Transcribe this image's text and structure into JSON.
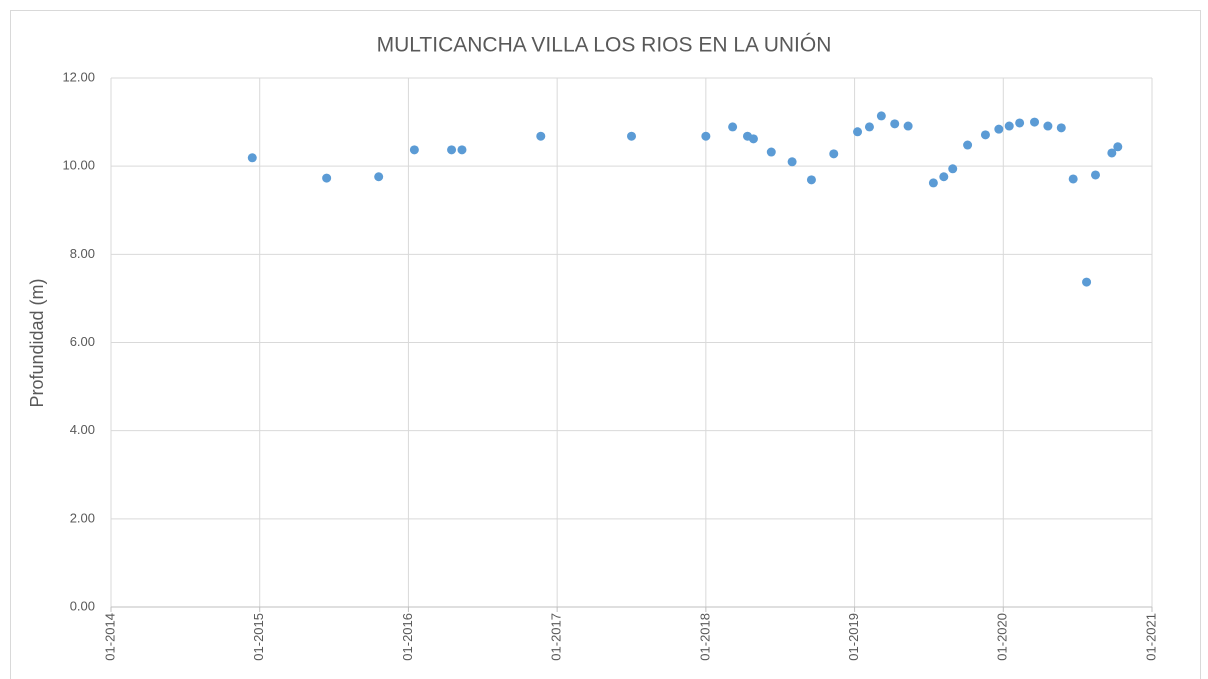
{
  "chart_data": {
    "type": "scatter",
    "title": "MULTICANCHA VILLA LOS RIOS EN LA UNIÓN",
    "y_label": "Profundidad (m)",
    "series": [
      {
        "color": "#5b9bd5",
        "x": [
          2014.95,
          2015.45,
          2015.8,
          2016.04,
          2016.29,
          2016.36,
          2016.89,
          2017.5,
          2018.0,
          2018.18,
          2018.28,
          2018.32,
          2018.44,
          2018.58,
          2018.71,
          2018.86,
          2019.02,
          2019.1,
          2019.18,
          2019.27,
          2019.36,
          2019.53,
          2019.6,
          2019.66,
          2019.76,
          2019.88,
          2019.97,
          2020.04,
          2020.11,
          2020.21,
          2020.3,
          2020.39,
          2020.47,
          2020.56,
          2020.62,
          2020.73,
          2020.77
        ],
        "values": [
          10.19,
          9.73,
          9.76,
          10.37,
          10.37,
          10.37,
          10.68,
          10.68,
          10.68,
          10.89,
          10.68,
          10.62,
          10.32,
          10.1,
          9.69,
          10.28,
          10.78,
          10.89,
          11.14,
          10.96,
          10.91,
          9.62,
          9.76,
          9.94,
          10.48,
          10.71,
          10.84,
          10.91,
          10.98,
          11.0,
          10.91,
          10.87,
          9.71,
          7.37,
          9.8,
          10.3,
          10.44
        ]
      }
    ],
    "xlim": [
      2014,
      2021
    ],
    "xticks": [
      {
        "value": 2014,
        "label": "01-2014"
      },
      {
        "value": 2015,
        "label": "01-2015"
      },
      {
        "value": 2016,
        "label": "01-2016"
      },
      {
        "value": 2017,
        "label": "01-2017"
      },
      {
        "value": 2018,
        "label": "01-2018"
      },
      {
        "value": 2019,
        "label": "01-2019"
      },
      {
        "value": 2020,
        "label": "01-2020"
      },
      {
        "value": 2021,
        "label": "01-2021"
      }
    ],
    "ylim": [
      0,
      12
    ],
    "yticks": [
      {
        "value": 0,
        "label": "0.00"
      },
      {
        "value": 2,
        "label": "2.00"
      },
      {
        "value": 4,
        "label": "4.00"
      },
      {
        "value": 6,
        "label": "6.00"
      },
      {
        "value": 8,
        "label": "8.00"
      },
      {
        "value": 10,
        "label": "10.00"
      },
      {
        "value": 12,
        "label": "12.00"
      }
    ],
    "grid": true
  }
}
